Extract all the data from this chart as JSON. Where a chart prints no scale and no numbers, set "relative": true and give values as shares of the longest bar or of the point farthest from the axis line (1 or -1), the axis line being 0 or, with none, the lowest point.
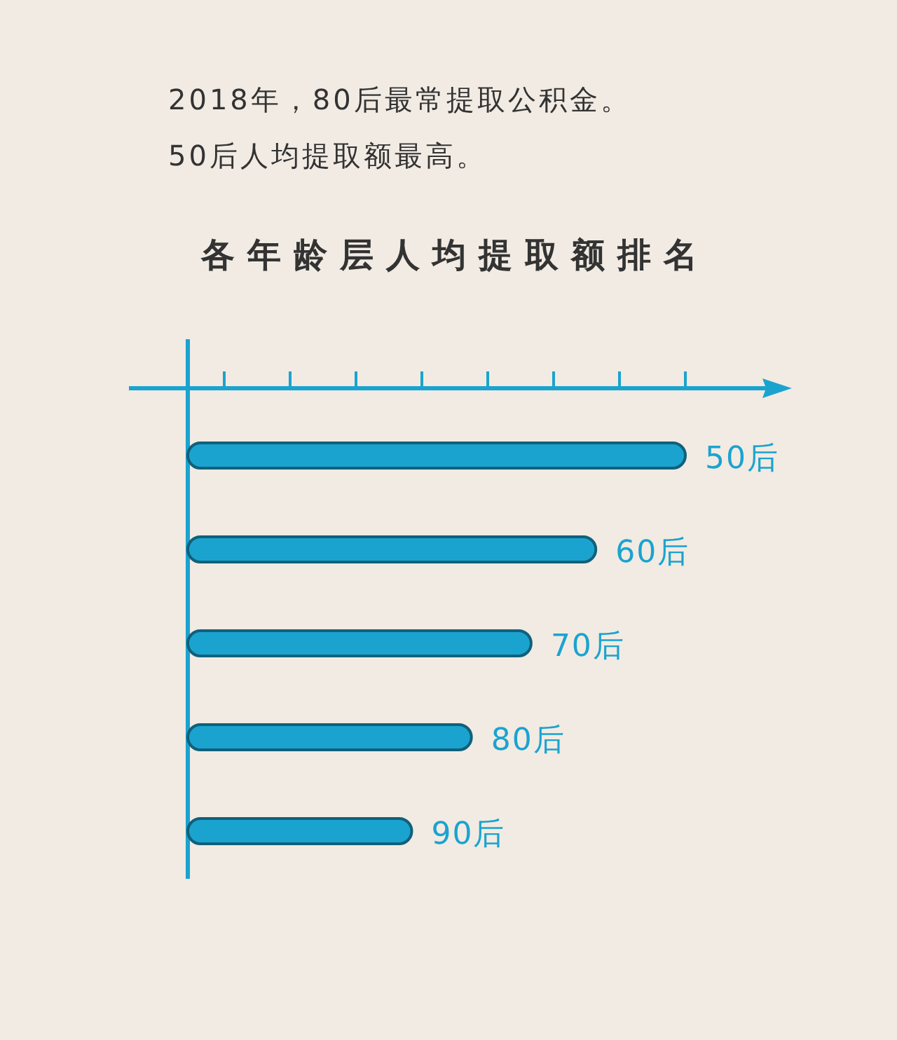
{
  "chart_data": {
    "type": "bar",
    "orientation": "horizontal",
    "relative": true,
    "title": "各年龄层人均提取额排名",
    "annotations": [
      "2018年，80后最常提取公积金。",
      "50后人均提取额最高。"
    ],
    "categories": [
      "50后",
      "60后",
      "70后",
      "80后",
      "90后"
    ],
    "values": [
      1,
      0.82,
      0.69,
      0.57,
      0.45
    ],
    "color": "#1ba3cf"
  }
}
